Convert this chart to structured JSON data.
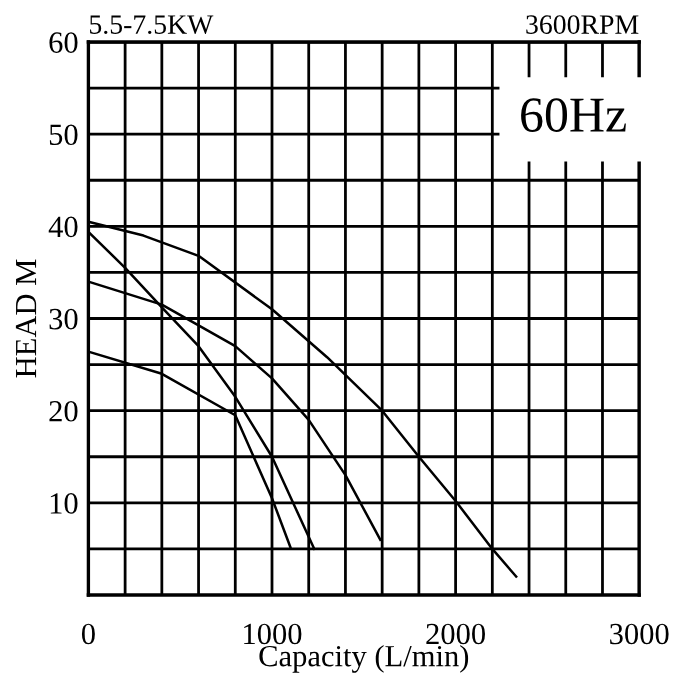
{
  "chart_data": {
    "type": "line",
    "title": "5.5-7.5KW",
    "subtitle": "3600RPM",
    "xlabel": "Capacity (L/min)",
    "ylabel": "HEAD M",
    "annotations": [
      "60Hz"
    ],
    "series": [
      {
        "color": "#000000",
        "x": [
          0,
          300,
          600,
          1000,
          1300,
          1600,
          1800,
          2000,
          2200,
          2330
        ],
        "values": [
          40.5,
          39,
          36.8,
          31,
          25.8,
          20,
          15,
          10.2,
          5,
          2
        ]
      },
      {
        "color": "#000000",
        "x": [
          0,
          400,
          800,
          1000,
          1200,
          1400,
          1590
        ],
        "values": [
          34,
          31.5,
          27,
          23.5,
          19,
          13,
          6
        ]
      },
      {
        "color": "#000000",
        "x": [
          0,
          200,
          400,
          600,
          800,
          1000,
          1230
        ],
        "values": [
          39.4,
          35.5,
          31.2,
          27,
          21.5,
          15,
          5
        ]
      },
      {
        "color": "#000000",
        "x": [
          0,
          400,
          800,
          900,
          1000,
          1100
        ],
        "values": [
          26.4,
          24,
          19.5,
          15,
          10.5,
          5.2
        ]
      }
    ],
    "xlim": [
      0,
      3000
    ],
    "ylim": [
      0,
      60
    ],
    "xticks": [
      0,
      {
        "value": 200,
        "label": null
      },
      {
        "value": 400,
        "label": null
      },
      {
        "value": 600,
        "label": null
      },
      {
        "value": 800,
        "label": null
      },
      1000,
      {
        "value": 1200,
        "label": null
      },
      {
        "value": 1400,
        "label": null
      },
      {
        "value": 1600,
        "label": null
      },
      {
        "value": 1800,
        "label": null
      },
      2000,
      {
        "value": 2200,
        "label": null
      },
      {
        "value": 2400,
        "label": null
      },
      {
        "value": 2600,
        "label": null
      },
      {
        "value": 2800,
        "label": null
      },
      3000
    ],
    "yticks": [
      {
        "value": 5,
        "label": null
      },
      10,
      {
        "value": 15,
        "label": null
      },
      20,
      {
        "value": 25,
        "label": null
      },
      30,
      {
        "value": 35,
        "label": null
      },
      40,
      {
        "value": 45,
        "label": null
      },
      50,
      {
        "value": 55,
        "label": null
      },
      60
    ],
    "grid": true,
    "marker": "none",
    "line_style": "solid"
  }
}
